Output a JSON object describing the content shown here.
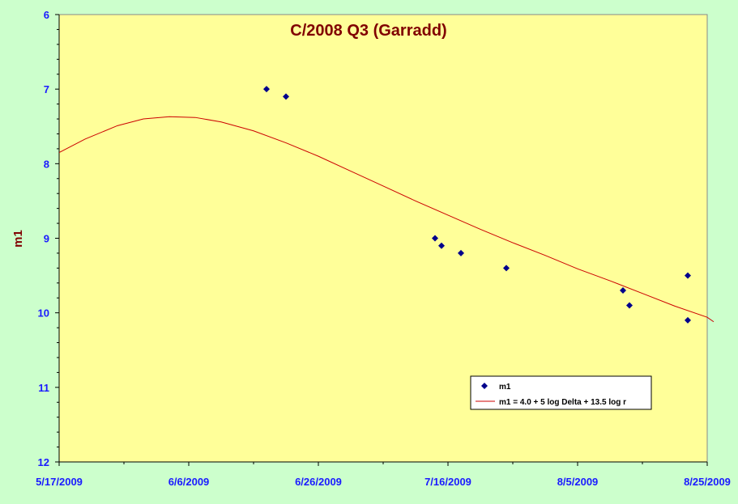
{
  "chart_data": {
    "type": "scatter",
    "title": "C/2008 Q3 (Garradd)",
    "xlabel": "",
    "ylabel": "m1",
    "x_type": "date",
    "xlim": [
      "5/17/2009",
      "8/25/2009"
    ],
    "x_ticks": [
      "5/17/2009",
      "6/6/2009",
      "6/26/2009",
      "7/16/2009",
      "8/5/2009",
      "8/25/2009"
    ],
    "ylim": [
      6,
      12
    ],
    "y_reversed": true,
    "y_ticks": [
      "6",
      "7",
      "8",
      "9",
      "10",
      "11",
      "12"
    ],
    "grid": false,
    "legend_position": "bottom-right",
    "series": [
      {
        "name": "m1",
        "kind": "points",
        "marker": "diamond",
        "color": "#00008b",
        "points": [
          {
            "x": "6/18/2009",
            "y": 7.0
          },
          {
            "x": "6/21/2009",
            "y": 7.1
          },
          {
            "x": "7/14/2009",
            "y": 9.0
          },
          {
            "x": "7/15/2009",
            "y": 9.1
          },
          {
            "x": "7/18/2009",
            "y": 9.2
          },
          {
            "x": "7/25/2009",
            "y": 9.4
          },
          {
            "x": "8/12/2009",
            "y": 9.7
          },
          {
            "x": "8/13/2009",
            "y": 9.9
          },
          {
            "x": "8/22/2009",
            "y": 9.5
          },
          {
            "x": "8/22/2009",
            "y": 10.1
          }
        ]
      },
      {
        "name": "m1 = 4.0 + 5 log Delta + 13.5 log r",
        "kind": "line",
        "color": "#cc0000",
        "points": [
          {
            "x": "5/17/2009",
            "y": 7.85
          },
          {
            "x": "5/21/2009",
            "y": 7.67
          },
          {
            "x": "5/26/2009",
            "y": 7.49
          },
          {
            "x": "5/30/2009",
            "y": 7.4
          },
          {
            "x": "6/3/2009",
            "y": 7.37
          },
          {
            "x": "6/7/2009",
            "y": 7.38
          },
          {
            "x": "6/11/2009",
            "y": 7.44
          },
          {
            "x": "6/16/2009",
            "y": 7.56
          },
          {
            "x": "6/21/2009",
            "y": 7.72
          },
          {
            "x": "6/26/2009",
            "y": 7.9
          },
          {
            "x": "7/1/2009",
            "y": 8.1
          },
          {
            "x": "7/6/2009",
            "y": 8.3
          },
          {
            "x": "7/11/2009",
            "y": 8.5
          },
          {
            "x": "7/16/2009",
            "y": 8.69
          },
          {
            "x": "7/21/2009",
            "y": 8.88
          },
          {
            "x": "7/26/2009",
            "y": 9.06
          },
          {
            "x": "7/31/2009",
            "y": 9.23
          },
          {
            "x": "8/5/2009",
            "y": 9.41
          },
          {
            "x": "8/10/2009",
            "y": 9.57
          },
          {
            "x": "8/15/2009",
            "y": 9.74
          },
          {
            "x": "8/20/2009",
            "y": 9.91
          },
          {
            "x": "8/25/2009",
            "y": 10.06
          },
          {
            "x": "8/26/2009",
            "y": 10.12
          }
        ]
      }
    ]
  },
  "colors": {
    "background": "#ccffcc",
    "plot_area": "#ffff99",
    "axis_text": "#1a1aff",
    "title_text": "#800000"
  }
}
